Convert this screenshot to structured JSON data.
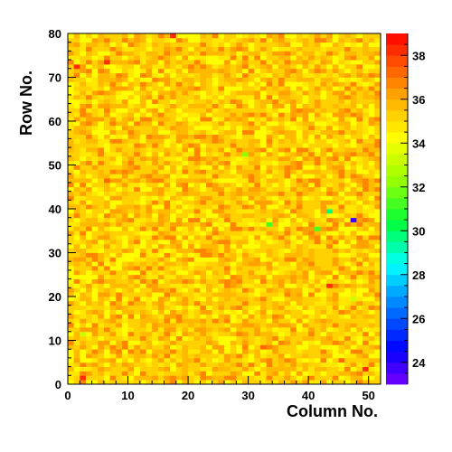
{
  "chart_data": {
    "type": "heatmap",
    "title": "",
    "xlabel": "Column No.",
    "ylabel": "Row No.",
    "xlim": [
      0,
      52
    ],
    "ylim": [
      0,
      80
    ],
    "x_ticks": [
      0,
      10,
      20,
      30,
      40,
      50
    ],
    "y_ticks": [
      0,
      10,
      20,
      30,
      40,
      50,
      60,
      70,
      80
    ],
    "columns": 52,
    "rows": 80,
    "zlim": [
      23,
      39
    ],
    "colorbar_ticks": [
      24,
      26,
      28,
      30,
      32,
      34,
      36,
      38
    ],
    "typical_value_range": [
      34,
      36
    ],
    "notable_cells": [
      {
        "column": 1,
        "row": 72,
        "value": 38
      },
      {
        "column": 2,
        "row": 1,
        "value": 38
      },
      {
        "column": 6,
        "row": 73,
        "value": 38
      },
      {
        "column": 6,
        "row": 46,
        "value": 37
      },
      {
        "column": 17,
        "row": 79,
        "value": 38
      },
      {
        "column": 32,
        "row": 8,
        "value": 37
      },
      {
        "column": 45,
        "row": 5,
        "value": 37
      },
      {
        "column": 43,
        "row": 22,
        "value": 38
      },
      {
        "column": 49,
        "row": 3,
        "value": 38
      },
      {
        "column": 43,
        "row": 39,
        "value": 29.5
      },
      {
        "column": 47,
        "row": 37,
        "value": 23.5
      },
      {
        "column": 41,
        "row": 35,
        "value": 31
      },
      {
        "column": 33,
        "row": 36,
        "value": 31
      },
      {
        "column": 29,
        "row": 52,
        "value": 32
      },
      {
        "column": 2,
        "row": 11,
        "value": 33
      },
      {
        "column": 47,
        "row": 19,
        "value": 33
      }
    ]
  }
}
